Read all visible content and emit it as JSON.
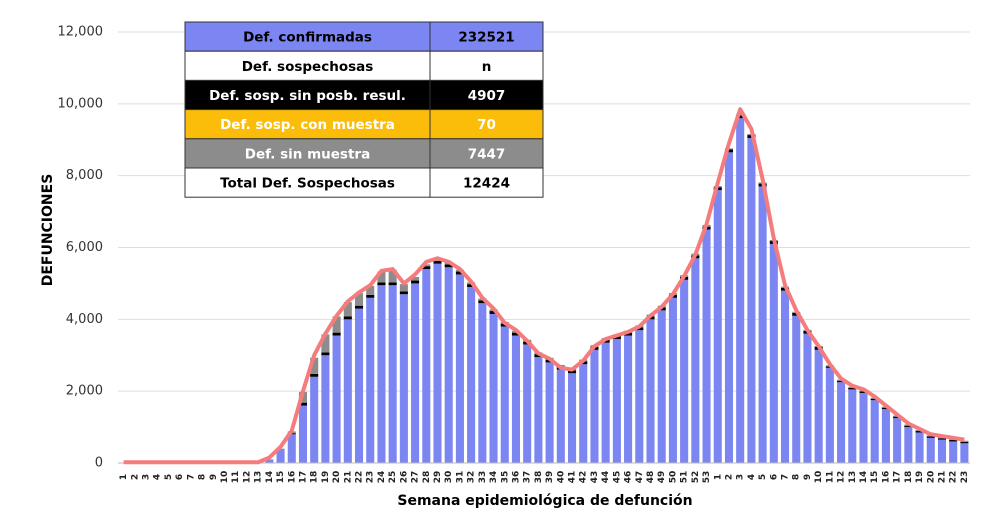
{
  "chart_data": {
    "type": "stacked_bar",
    "y_label": "DEFUNCIONES",
    "x_label": "Semana epidemiológica de defunción",
    "categories": [
      "1",
      "2",
      "3",
      "4",
      "5",
      "6",
      "7",
      "8",
      "9",
      "10",
      "11",
      "12",
      "13",
      "14",
      "15",
      "16",
      "17",
      "18",
      "19",
      "20",
      "21",
      "22",
      "23",
      "24",
      "25",
      "26",
      "27",
      "28",
      "29",
      "30",
      "31",
      "32",
      "33",
      "34",
      "35",
      "36",
      "37",
      "38",
      "39",
      "40",
      "41",
      "42",
      "43",
      "44",
      "45",
      "46",
      "47",
      "48",
      "49",
      "50",
      "51",
      "52",
      "53",
      "1",
      "2",
      "3",
      "4",
      "5",
      "6",
      "7",
      "8",
      "9",
      "10",
      "11",
      "12",
      "13",
      "14",
      "15",
      "16",
      "17",
      "18",
      "19",
      "20",
      "21",
      "22",
      "23"
    ],
    "ylim": [
      0,
      12000
    ],
    "yticks": [
      0,
      {
        "value": 2000,
        "label": "2,000"
      },
      {
        "value": 4000,
        "label": "4,000"
      },
      {
        "value": 6000,
        "label": "6,000"
      },
      {
        "value": 8000,
        "label": "8,000"
      },
      {
        "value": 10000,
        "label": "10,000"
      },
      {
        "value": 12000,
        "label": "12,000"
      }
    ],
    "grid": true,
    "series": [
      {
        "name": "Def. confirmadas",
        "color": "#7b86f2",
        "text_color": "#000000",
        "total": 232521,
        "values": [
          0,
          10,
          20,
          20,
          10,
          10,
          10,
          10,
          10,
          10,
          10,
          10,
          20,
          100,
          400,
          800,
          1600,
          2400,
          3000,
          3550,
          4000,
          4300,
          4600,
          4950,
          4950,
          4700,
          5000,
          5400,
          5550,
          5450,
          5250,
          4900,
          4450,
          4150,
          3800,
          3550,
          3300,
          2950,
          2800,
          2600,
          2500,
          2750,
          3150,
          3350,
          3450,
          3550,
          3700,
          4000,
          4250,
          4600,
          5100,
          5700,
          6500,
          7600,
          8650,
          9600,
          9050,
          7700,
          6100,
          4800,
          4100,
          3600,
          3150,
          2650,
          2250,
          2050,
          1950,
          1750,
          1500,
          1250,
          1000,
          850,
          700,
          650,
          600,
          550
        ]
      },
      {
        "name": "Def. sosp. sin posb. resul.",
        "color": "#000000",
        "text_color": "#ffffff",
        "total": 4907,
        "values": [
          0,
          0,
          0,
          0,
          0,
          0,
          0,
          0,
          0,
          0,
          0,
          0,
          0,
          0,
          0,
          30,
          80,
          80,
          80,
          80,
          80,
          80,
          80,
          80,
          80,
          80,
          80,
          80,
          80,
          80,
          80,
          80,
          80,
          80,
          80,
          80,
          80,
          80,
          80,
          80,
          80,
          80,
          80,
          80,
          80,
          80,
          80,
          80,
          80,
          80,
          80,
          80,
          80,
          80,
          80,
          80,
          80,
          80,
          80,
          80,
          80,
          80,
          80,
          40,
          40,
          40,
          40,
          40,
          40,
          40,
          40,
          40,
          40,
          40,
          40,
          40
        ]
      },
      {
        "name": "Def. sosp. con  muestra",
        "color": "#fbbd0a",
        "text_color": "#ffffff",
        "total": 70,
        "values": [
          0,
          0,
          0,
          0,
          0,
          0,
          0,
          0,
          0,
          0,
          0,
          0,
          0,
          0,
          0,
          0,
          0,
          0,
          0,
          0,
          0,
          0,
          0,
          0,
          0,
          0,
          0,
          0,
          0,
          0,
          0,
          0,
          0,
          0,
          0,
          0,
          0,
          0,
          0,
          0,
          0,
          0,
          0,
          0,
          0,
          0,
          0,
          0,
          0,
          0,
          0,
          0,
          0,
          0,
          0,
          0,
          0,
          0,
          0,
          0,
          0,
          0,
          0,
          0,
          0,
          0,
          0,
          0,
          0,
          0,
          0,
          0,
          0,
          0,
          0,
          0
        ]
      },
      {
        "name": "Def. sin muestra",
        "color": "#8c8c8c",
        "text_color": "#ffffff",
        "total": 7447,
        "values": [
          0,
          0,
          0,
          0,
          0,
          0,
          0,
          0,
          0,
          0,
          0,
          0,
          0,
          0,
          0,
          50,
          300,
          450,
          500,
          450,
          400,
          350,
          250,
          300,
          350,
          200,
          100,
          50,
          50,
          50,
          50,
          50,
          50,
          50,
          50,
          50,
          50,
          50,
          50,
          50,
          50,
          50,
          50,
          50,
          50,
          50,
          50,
          50,
          50,
          50,
          50,
          50,
          50,
          30,
          30,
          30,
          30,
          30,
          30,
          30,
          30,
          30,
          30,
          30,
          30,
          30,
          30,
          30,
          30,
          30,
          30,
          30,
          30,
          30,
          30,
          30
        ]
      }
    ],
    "line": {
      "color": "#f47c7c",
      "values": [
        20,
        20,
        20,
        20,
        20,
        20,
        20,
        20,
        20,
        20,
        20,
        20,
        20,
        150,
        450,
        900,
        2000,
        3000,
        3600,
        4100,
        4500,
        4750,
        4950,
        5350,
        5400,
        5000,
        5250,
        5600,
        5700,
        5600,
        5400,
        5050,
        4600,
        4300,
        3900,
        3700,
        3400,
        3050,
        2900,
        2650,
        2600,
        2850,
        3250,
        3450,
        3550,
        3650,
        3800,
        4100,
        4350,
        4700,
        5200,
        5800,
        6650,
        7800,
        8900,
        9850,
        9300,
        7900,
        6250,
        4950,
        4250,
        3700,
        3250,
        2750,
        2350,
        2150,
        2050,
        1850,
        1600,
        1350,
        1100,
        950,
        800,
        750,
        700,
        650
      ]
    },
    "suspects_row": {
      "label": "Def. sospechosas",
      "value": "n"
    },
    "total_row": {
      "label": "Total Def. Sospechosas",
      "value": 12424
    }
  }
}
